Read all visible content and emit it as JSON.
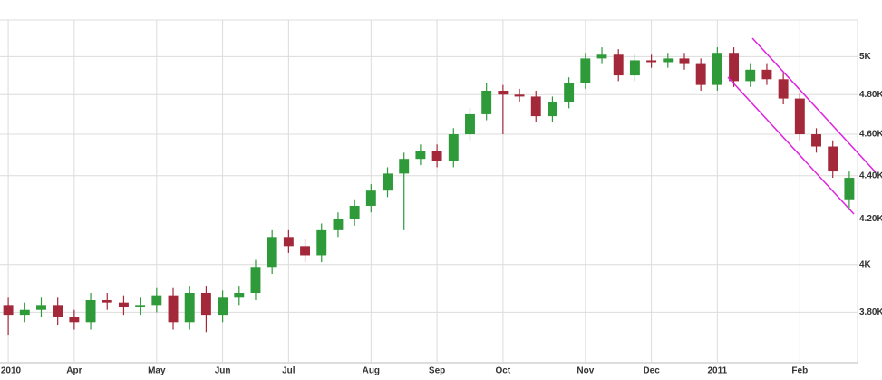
{
  "chart_data": {
    "type": "candlestick",
    "log_scale": true,
    "grid": true,
    "up_color": "#2e9a3a",
    "down_color": "#a3283a",
    "categories": [
      "2010",
      null,
      null,
      null,
      "Apr",
      null,
      null,
      null,
      null,
      "May",
      null,
      null,
      null,
      "Jun",
      null,
      null,
      null,
      "Jul",
      null,
      null,
      null,
      null,
      "Aug",
      null,
      null,
      null,
      "Sep",
      null,
      null,
      null,
      "Oct",
      null,
      null,
      null,
      null,
      "Nov",
      null,
      null,
      null,
      "Dec",
      null,
      null,
      null,
      "2011",
      null,
      null,
      null,
      null,
      "Feb",
      null,
      null,
      null
    ],
    "open": [
      3830,
      3790,
      3810,
      3830,
      3780,
      3760,
      3850,
      3840,
      3820,
      3830,
      3870,
      3760,
      3880,
      3790,
      3860,
      3880,
      3990,
      4120,
      4080,
      4040,
      4150,
      4200,
      4260,
      4330,
      4410,
      4480,
      4520,
      4470,
      4600,
      4700,
      4820,
      4800,
      4790,
      4690,
      4760,
      4860,
      4990,
      5010,
      4900,
      4980,
      4970,
      4990,
      4960,
      4850,
      5020,
      4870,
      4930,
      4880,
      4780,
      4600,
      4540,
      4290
    ],
    "high": [
      3860,
      3840,
      3860,
      3860,
      3810,
      3880,
      3880,
      3870,
      3860,
      3900,
      3900,
      3910,
      3910,
      3890,
      3910,
      4020,
      4150,
      4150,
      4110,
      4180,
      4230,
      4290,
      4360,
      4440,
      4510,
      4550,
      4550,
      4630,
      4730,
      4860,
      4850,
      4830,
      4820,
      4790,
      4890,
      5020,
      5050,
      5040,
      5010,
      5010,
      5020,
      5020,
      4990,
      5050,
      5050,
      4960,
      4960,
      4910,
      4810,
      4630,
      4570,
      4420
    ],
    "low": [
      3710,
      3760,
      3780,
      3750,
      3730,
      3730,
      3810,
      3790,
      3790,
      3800,
      3730,
      3730,
      3720,
      3760,
      3830,
      3850,
      3960,
      4050,
      4010,
      4010,
      4120,
      4170,
      4230,
      4300,
      4150,
      4450,
      4440,
      4440,
      4570,
      4670,
      4600,
      4760,
      4660,
      4660,
      4730,
      4830,
      4960,
      4870,
      4870,
      4940,
      4940,
      4930,
      4820,
      4820,
      4840,
      4840,
      4850,
      4750,
      4570,
      4510,
      4390,
      4240
    ],
    "close": [
      3790,
      3810,
      3830,
      3780,
      3760,
      3850,
      3840,
      3820,
      3830,
      3870,
      3760,
      3880,
      3790,
      3860,
      3880,
      3990,
      4120,
      4080,
      4040,
      4150,
      4200,
      4260,
      4330,
      4410,
      4480,
      4520,
      4470,
      4600,
      4700,
      4820,
      4800,
      4790,
      4690,
      4760,
      4860,
      4990,
      5010,
      4900,
      4980,
      4970,
      4990,
      4960,
      4850,
      5020,
      4870,
      4930,
      4880,
      4780,
      4600,
      4540,
      4420,
      4390
    ],
    "ylim": [
      3600,
      5200
    ],
    "yticks": [
      {
        "value": 3800,
        "label": "3.80K"
      },
      {
        "value": 4000,
        "label": "4K"
      },
      {
        "value": 4200,
        "label": "4.20K"
      },
      {
        "value": 4400,
        "label": "4.40K"
      },
      {
        "value": 4600,
        "label": "4.60K"
      },
      {
        "value": 4800,
        "label": "4.80K"
      },
      {
        "value": 5000,
        "label": "5K"
      }
    ]
  }
}
